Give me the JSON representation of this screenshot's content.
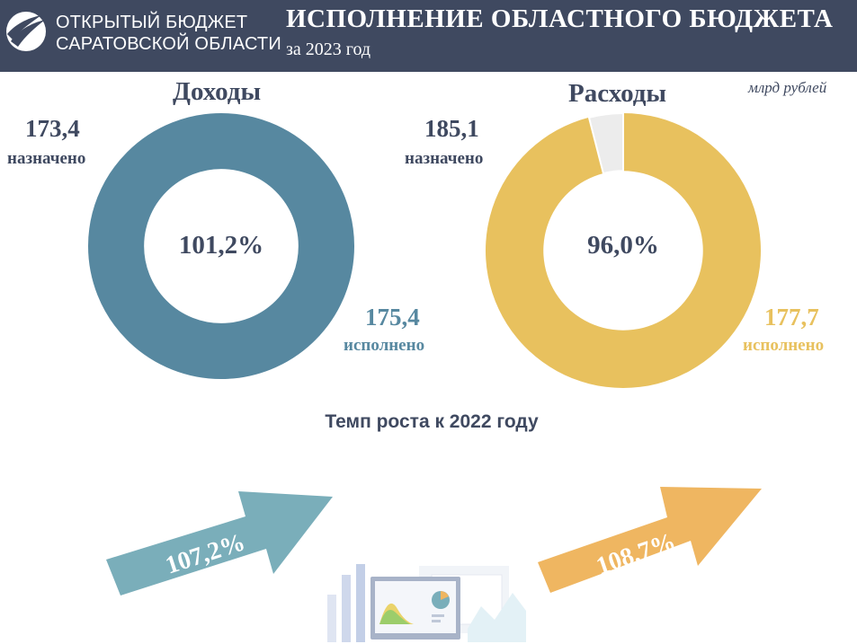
{
  "header": {
    "brand_line1": "ОТКРЫТЫЙ БЮДЖЕТ",
    "brand_line2": "САРАТОВСКОЙ ОБЛАСТИ",
    "title": "ИСПОЛНЕНИЕ ОБЛАСТНОГО БЮДЖЕТА",
    "subtitle": "за 2023 год"
  },
  "unit": "млрд рублей",
  "colors": {
    "header": "#3f4960",
    "income": "#5788a0",
    "expense": "#e8c15e",
    "remainder": "#ececec",
    "income_arrow": "#7aaeba",
    "expense_arrow": "#efb661"
  },
  "chart_data": [
    {
      "type": "pie",
      "title": "Доходы",
      "planned_value": "173,4",
      "planned_label": "назначено",
      "actual_value": "175,4",
      "actual_label": "исполнено",
      "center_label": "101,2%",
      "completion_percent": 101.2
    },
    {
      "type": "pie",
      "title": "Расходы",
      "planned_value": "185,1",
      "planned_label": "назначено",
      "actual_value": "177,7",
      "actual_label": "исполнено",
      "center_label": "96,0%",
      "completion_percent": 96.0
    }
  ],
  "growth": {
    "title": "Темп роста к 2022 году",
    "income_label": "107,2%",
    "expense_label": "108,7%"
  }
}
